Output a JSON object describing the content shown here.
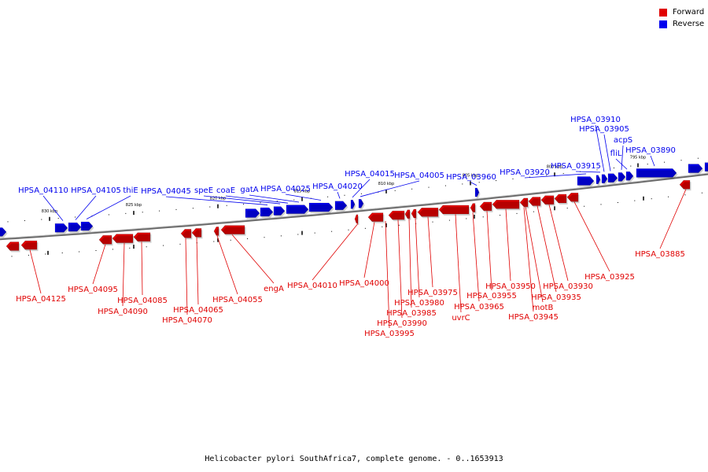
{
  "legend": {
    "forward_label": "Forward",
    "reverse_label": "Reverse",
    "forward_color": "#e00000",
    "reverse_color": "#0000ee"
  },
  "caption": "Helicobacter pylori SouthAfrica7, complete genome. - 0..1653913",
  "scale_labels": [
    "830 kbp",
    "825 kbp",
    "820 kbp",
    "815 kbp",
    "810 kbp",
    "805 kbp",
    "800 kbp",
    "795 kbp"
  ],
  "reverse_genes": [
    "HPSA_04110",
    "HPSA_04105",
    "thiE",
    "HPSA_04045",
    "speE",
    "coaE",
    "gatA",
    "HPSA_04025",
    "HPSA_04020",
    "HPSA_04015",
    "HPSA_04005",
    "HPSA_03960",
    "HPSA_03920",
    "HPSA_03915",
    "HPSA_03910",
    "HPSA_03905",
    "acpS",
    "fliL",
    "HPSA_03890"
  ],
  "forward_genes": [
    "HPSA_04125",
    "HPSA_04095",
    "HPSA_04085",
    "HPSA_04090",
    "HPSA_04065",
    "HPSA_04070",
    "HPSA_04055",
    "engA",
    "HPSA_04010",
    "HPSA_04000",
    "HPSA_03975",
    "HPSA_03980",
    "HPSA_03985",
    "HPSA_03990",
    "HPSA_03995",
    "uvrC",
    "HPSA_03965",
    "HPSA_03955",
    "HPSA_03950",
    "motB",
    "HPSA_03945",
    "HPSA_03935",
    "HPSA_03930",
    "HPSA_03925",
    "HPSA_03885"
  ]
}
